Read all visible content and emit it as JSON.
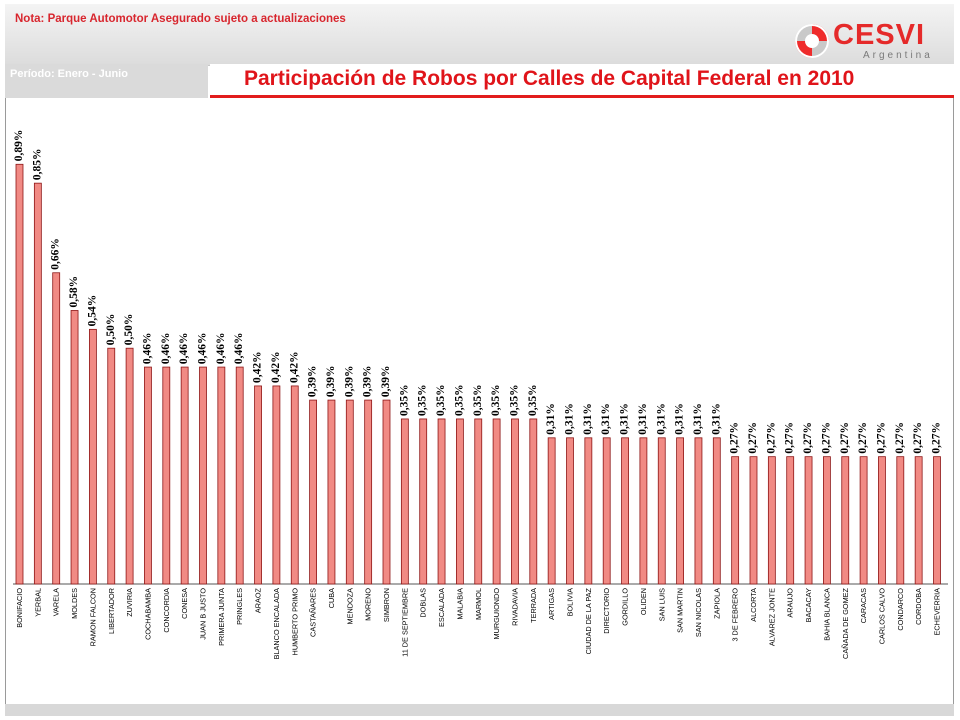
{
  "header": {
    "note": "Nota: Parque Automotor Asegurado sujeto a actualizaciones",
    "period": "Período: Enero - Junio",
    "logo_name": "CESVI",
    "logo_sub": "Argentina"
  },
  "colors": {
    "accent": "#e0141a",
    "bar_fill": "#f18a84",
    "bar_stroke": "#8e1616"
  },
  "chart_data": {
    "type": "bar",
    "title": "Participación de Robos por Calles de Capital Federal en 2010",
    "xlabel": "",
    "ylabel": "",
    "ylim": [
      0,
      0.95
    ],
    "grid": false,
    "categories": [
      "BONIFACIO",
      "YERBAL",
      "VARELA",
      "MOLDES",
      "RAMON FALCON",
      "LIBERTADOR",
      "ZUVIRIA",
      "COCHABAMBA",
      "CONCORDIA",
      "CONESA",
      "JUAN B JUSTO",
      "PRIMERA JUNTA",
      "PRINGLES",
      "ARAOZ",
      "BLANCO ENCALADA",
      "HUMBERTO PRIMO",
      "CASTAÑARES",
      "CUBA",
      "MENDOZA",
      "MORENO",
      "SIMBRON",
      "11 DE SEPTIEMBRE",
      "DOBLAS",
      "ESCALADA",
      "MALABIA",
      "MARMOL",
      "MURGUIONDO",
      "RIVADAVIA",
      "TERRADA",
      "ARTIGAS",
      "BOLIVIA",
      "CIUDAD DE LA PAZ",
      "DIRECTORIO",
      "GORDILLO",
      "OLIDEN",
      "SAN LUIS",
      "SAN MARTIN",
      "SAN NICOLAS",
      "ZAPIOLA",
      "3 DE FEBRERO",
      "ALCORTA",
      "ALVAREZ JONTE",
      "ARAUJO",
      "BACACAY",
      "BAHIA BLANCA",
      "CAÑADA DE GOMEZ",
      "CARACAS",
      "CARLOS CALVO",
      "CONDARCO",
      "CORDOBA",
      "ECHEVERRIA"
    ],
    "values": [
      0.89,
      0.85,
      0.66,
      0.58,
      0.54,
      0.5,
      0.5,
      0.46,
      0.46,
      0.46,
      0.46,
      0.46,
      0.46,
      0.42,
      0.42,
      0.42,
      0.39,
      0.39,
      0.39,
      0.39,
      0.39,
      0.35,
      0.35,
      0.35,
      0.35,
      0.35,
      0.35,
      0.35,
      0.35,
      0.31,
      0.31,
      0.31,
      0.31,
      0.31,
      0.31,
      0.31,
      0.31,
      0.31,
      0.31,
      0.27,
      0.27,
      0.27,
      0.27,
      0.27,
      0.27,
      0.27,
      0.27,
      0.27,
      0.27,
      0.27,
      0.27
    ],
    "value_labels": [
      "0,89%",
      "0,85%",
      "0,66%",
      "0,58%",
      "0,54%",
      "0,50%",
      "0,50%",
      "0,46%",
      "0,46%",
      "0,46%",
      "0,46%",
      "0,46%",
      "0,46%",
      "0,42%",
      "0,42%",
      "0,42%",
      "0,39%",
      "0,39%",
      "0,39%",
      "0,39%",
      "0,39%",
      "0,35%",
      "0,35%",
      "0,35%",
      "0,35%",
      "0,35%",
      "0,35%",
      "0,35%",
      "0,35%",
      "0,31%",
      "0,31%",
      "0,31%",
      "0,31%",
      "0,31%",
      "0,31%",
      "0,31%",
      "0,31%",
      "0,31%",
      "0,31%",
      "0,27%",
      "0,27%",
      "0,27%",
      "0,27%",
      "0,27%",
      "0,27%",
      "0,27%",
      "0,27%",
      "0,27%",
      "0,27%",
      "0,27%",
      "0,27%"
    ]
  }
}
